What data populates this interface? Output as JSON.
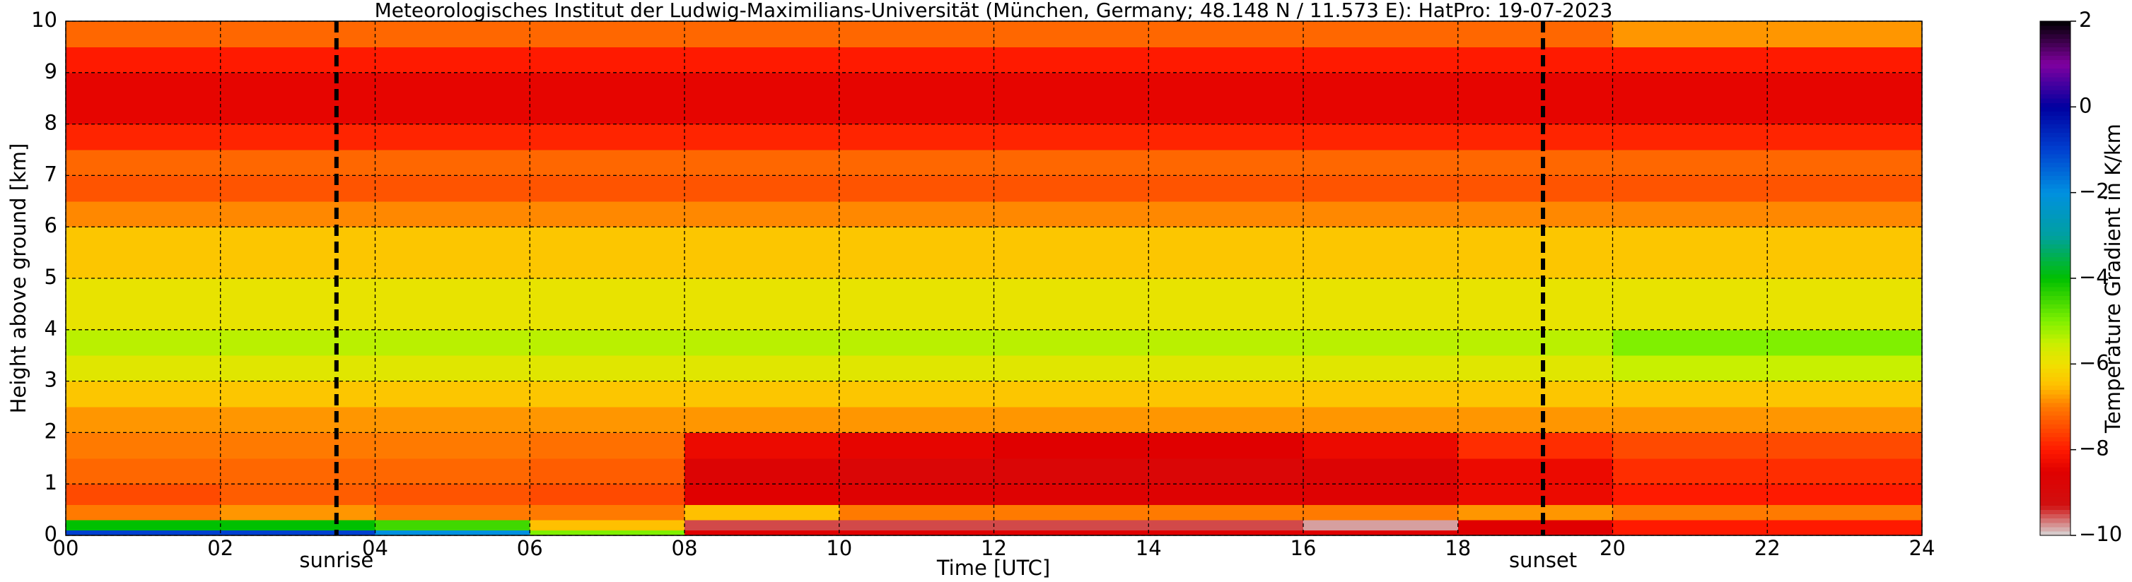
{
  "chart_data": {
    "type": "heatmap",
    "title": "Meteorologisches Institut der Ludwig-Maximilians-Universität (München, Germany; 48.148 N / 11.573 E):    HatPro: 19-07-2023",
    "x_label": "Time [UTC]",
    "y_label": "Height above ground [km]",
    "colorbar_label": "Temperature Gradient in K/km",
    "xlim": [
      0,
      24
    ],
    "ylim": [
      0,
      10
    ],
    "xticks": [
      {
        "value": 0,
        "label": "00"
      },
      {
        "value": 2,
        "label": "02"
      },
      {
        "value": 4,
        "label": "04"
      },
      {
        "value": 6,
        "label": "06"
      },
      {
        "value": 8,
        "label": "08"
      },
      10,
      12,
      14,
      16,
      18,
      20,
      22,
      24
    ],
    "yticks": [
      0,
      1,
      2,
      3,
      4,
      5,
      6,
      7,
      8,
      9,
      10
    ],
    "grid": true,
    "clim": [
      -10,
      2
    ],
    "cticks": [
      {
        "value": -10,
        "label": "−10"
      },
      {
        "value": -8,
        "label": "−8"
      },
      {
        "value": -6,
        "label": "−6"
      },
      {
        "value": -4,
        "label": "−4"
      },
      {
        "value": -2,
        "label": "−2"
      },
      0,
      2
    ],
    "colormap": [
      [
        -10,
        "#d8d8d8"
      ],
      [
        -9.3,
        "#d01010"
      ],
      [
        -8.5,
        "#e00000"
      ],
      [
        -8,
        "#ff1a00"
      ],
      [
        -7,
        "#ff7a00"
      ],
      [
        -6.5,
        "#ffc000"
      ],
      [
        -6,
        "#f0e000"
      ],
      [
        -5.5,
        "#c8f000"
      ],
      [
        -5,
        "#80f000"
      ],
      [
        -4,
        "#00c000"
      ],
      [
        -3,
        "#00a0a0"
      ],
      [
        -2,
        "#0090e0"
      ],
      [
        -1,
        "#0040d0"
      ],
      [
        0,
        "#0000a0"
      ],
      [
        1,
        "#8000a0"
      ],
      [
        2,
        "#000000"
      ]
    ],
    "xbins": [
      0,
      2,
      4,
      6,
      8,
      10,
      12,
      14,
      16,
      18,
      20,
      22,
      24
    ],
    "ybins": [
      0,
      0.1,
      0.3,
      0.6,
      1,
      1.5,
      2,
      2.5,
      3,
      3.5,
      4,
      5,
      6,
      6.5,
      7,
      7.5,
      8,
      9,
      9.5,
      10
    ],
    "values": [
      [
        -1,
        -1,
        -2,
        -5,
        -8.5,
        -8.5,
        -8.5,
        -8.5,
        -8.5,
        -8.5,
        -8,
        -8
      ],
      [
        -4,
        -4,
        -4.5,
        -6.5,
        -9.5,
        -9.5,
        -9.5,
        -9.5,
        -9.8,
        -8.5,
        -8,
        -8
      ],
      [
        -7,
        -6.8,
        -7,
        -7,
        -6.5,
        -7,
        -7,
        -7,
        -7,
        -6.8,
        -7,
        -7
      ],
      [
        -7.5,
        -7.3,
        -7.4,
        -7.5,
        -8.5,
        -8.6,
        -8.6,
        -8.6,
        -8.6,
        -8.3,
        -8,
        -8
      ],
      [
        -7.2,
        -7.2,
        -7.2,
        -7.3,
        -8.7,
        -8.8,
        -8.8,
        -8.8,
        -8.7,
        -8.3,
        -7.8,
        -7.8
      ],
      [
        -7,
        -7,
        -7,
        -7.1,
        -8.3,
        -8.4,
        -8.5,
        -8.5,
        -8.3,
        -7.8,
        -7.5,
        -7.5
      ],
      [
        -6.8,
        -6.8,
        -6.8,
        -6.8,
        -6.8,
        -6.8,
        -6.8,
        -6.8,
        -6.8,
        -6.8,
        -6.8,
        -6.8
      ],
      [
        -6.4,
        -6.4,
        -6.4,
        -6.4,
        -6.4,
        -6.4,
        -6.4,
        -6.4,
        -6.4,
        -6.4,
        -6.4,
        -6.4
      ],
      [
        -5.8,
        -5.8,
        -5.8,
        -5.8,
        -5.8,
        -5.8,
        -5.8,
        -5.8,
        -5.8,
        -5.8,
        -5.5,
        -5.5
      ],
      [
        -5.4,
        -5.4,
        -5.4,
        -5.4,
        -5.4,
        -5.4,
        -5.4,
        -5.4,
        -5.4,
        -5.4,
        -5,
        -5
      ],
      [
        -5.9,
        -5.9,
        -5.9,
        -5.9,
        -5.9,
        -5.9,
        -5.9,
        -5.9,
        -5.9,
        -5.9,
        -5.9,
        -5.9
      ],
      [
        -6.4,
        -6.4,
        -6.4,
        -6.4,
        -6.4,
        -6.4,
        -6.4,
        -6.4,
        -6.4,
        -6.4,
        -6.4,
        -6.4
      ],
      [
        -6.9,
        -6.9,
        -6.9,
        -6.9,
        -6.9,
        -6.9,
        -6.9,
        -6.9,
        -6.9,
        -6.9,
        -6.9,
        -6.9
      ],
      [
        -7.4,
        -7.4,
        -7.4,
        -7.4,
        -7.4,
        -7.4,
        -7.4,
        -7.4,
        -7.4,
        -7.4,
        -7.4,
        -7.4
      ],
      [
        -7.2,
        -7.2,
        -7.2,
        -7.2,
        -7.2,
        -7.2,
        -7.2,
        -7.2,
        -7.2,
        -7.2,
        -7.2,
        -7.2
      ],
      [
        -7.9,
        -7.9,
        -7.9,
        -7.9,
        -7.9,
        -7.9,
        -7.9,
        -7.9,
        -7.9,
        -7.9,
        -7.9,
        -7.9
      ],
      [
        -8.4,
        -8.4,
        -8.4,
        -8.4,
        -8.4,
        -8.4,
        -8.4,
        -8.4,
        -8.4,
        -8.4,
        -8.4,
        -8.4
      ],
      [
        -8,
        -8,
        -8,
        -8,
        -8,
        -8,
        -8,
        -8,
        -8,
        -8,
        -8,
        -8
      ],
      [
        -7.2,
        -7.2,
        -7.2,
        -7.2,
        -7.2,
        -7.2,
        -7.2,
        -7.2,
        -7.2,
        -7.2,
        -6.8,
        -6.8
      ]
    ],
    "vlines": [
      {
        "x": 3.5,
        "label": "sunrise"
      },
      {
        "x": 19.1,
        "label": "sunset"
      }
    ]
  }
}
